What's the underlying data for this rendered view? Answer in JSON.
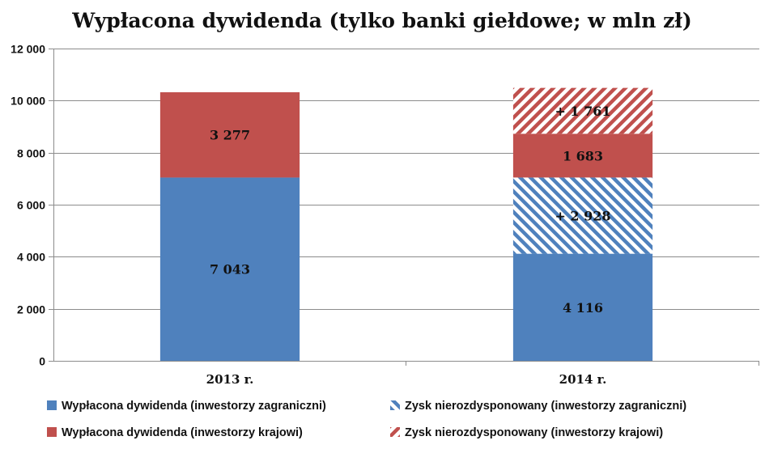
{
  "chart_data": {
    "type": "bar",
    "stacked": true,
    "title": "Wypłacona dywidenda (tylko banki giełdowe; w mln zł)",
    "xlabel": "",
    "ylabel": "",
    "categories": [
      "2013 r.",
      "2014 r."
    ],
    "ylim": [
      0,
      12000
    ],
    "yticks": [
      0,
      2000,
      4000,
      6000,
      8000,
      10000,
      12000
    ],
    "ytick_labels": [
      "0",
      "2 000",
      "4 000",
      "6 000",
      "8 000",
      "10 000",
      "12 000"
    ],
    "grid": true,
    "legend_position": "bottom",
    "series": [
      {
        "name": "Wypłacona dywidenda (inwestorzy zagraniczni)",
        "values": [
          7043,
          4116
        ],
        "labels": [
          "7 043",
          "4 116"
        ],
        "color": "#4f81bd",
        "pattern": "solid"
      },
      {
        "name": "Zysk nierozdysponowany (inwestorzy zagraniczni)",
        "values": [
          0,
          2928
        ],
        "labels": [
          "",
          "+ 2 928"
        ],
        "color": "#4f81bd",
        "pattern": "hatch"
      },
      {
        "name": "Wypłacona dywidenda (inwestorzy krajowi)",
        "values": [
          3277,
          1683
        ],
        "labels": [
          "3 277",
          "1 683"
        ],
        "color": "#c0504d",
        "pattern": "solid"
      },
      {
        "name": "Zysk nierozdysponowany (inwestorzy krajowi)",
        "values": [
          0,
          1761
        ],
        "labels": [
          "",
          "+ 1 761"
        ],
        "color": "#c0504d",
        "pattern": "hatch"
      }
    ],
    "legend_order": [
      0,
      1,
      2,
      3
    ]
  }
}
